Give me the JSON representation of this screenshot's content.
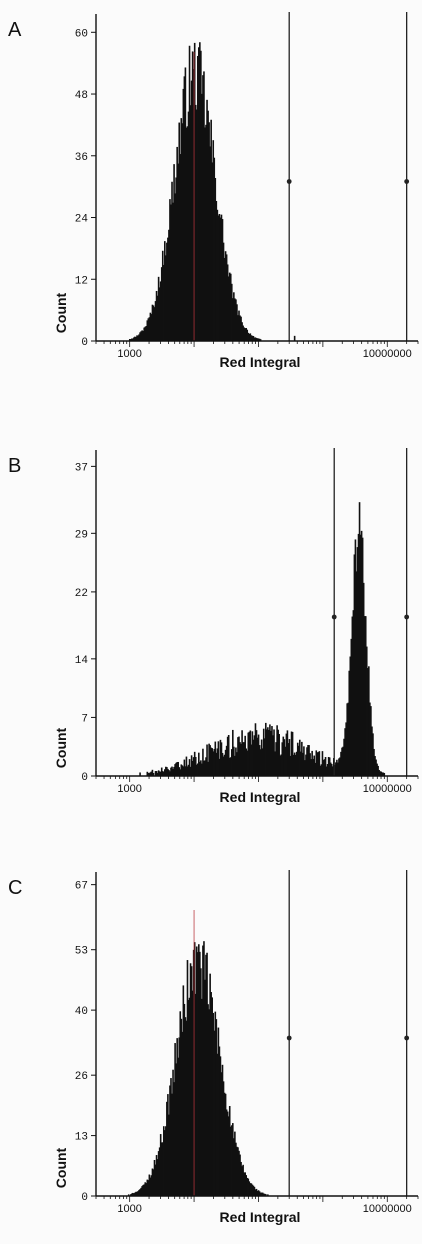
{
  "chart_data": [
    {
      "type": "histogram",
      "panel_label": "A",
      "xlabel": "Red Integral",
      "ylabel": "Count",
      "xscale": "log",
      "xlim": [
        300,
        30000000
      ],
      "x_tick_labels": [
        "1000",
        "10000000"
      ],
      "ylim": [
        0,
        62
      ],
      "y_tick_labels": [
        "60",
        "48",
        "36",
        "24",
        "12",
        "0"
      ],
      "y_ticks": [
        60,
        48,
        36,
        24,
        12,
        0
      ],
      "gates": [
        300000,
        20000000
      ],
      "peaks": [
        {
          "center": 4.0,
          "width": 0.32,
          "height": 52,
          "noise": 0.3
        }
      ],
      "tail_bins": [
        [
          5.55,
          1
        ]
      ],
      "redline": 10000
    },
    {
      "type": "histogram",
      "panel_label": "B",
      "xlabel": "Red Integral",
      "ylabel": "Count",
      "xscale": "log",
      "xlim": [
        300,
        30000000
      ],
      "x_tick_labels": [
        "1000",
        "10000000"
      ],
      "ylim": [
        0,
        38
      ],
      "y_tick_labels": [
        "37",
        "29",
        "22",
        "14",
        "7",
        "0"
      ],
      "y_ticks": [
        37,
        29,
        22,
        14,
        7,
        0
      ],
      "gates": [
        1500000,
        20000000
      ],
      "peaks": [
        {
          "center": 5.0,
          "width": 0.8,
          "height": 4.5,
          "noise": 0.9
        },
        {
          "center": 6.55,
          "width": 0.11,
          "height": 29,
          "noise": 0.25
        }
      ],
      "tail_bins": [],
      "redline": null
    },
    {
      "type": "histogram",
      "panel_label": "C",
      "xlabel": "Red Integral",
      "ylabel": "Count",
      "xscale": "log",
      "xlim": [
        300,
        30000000
      ],
      "x_tick_labels": [
        "1000",
        "10000000"
      ],
      "ylim": [
        0,
        68
      ],
      "y_tick_labels": [
        "67",
        "53",
        "40",
        "26",
        "13",
        "0"
      ],
      "y_ticks": [
        67,
        53,
        40,
        26,
        13,
        0
      ],
      "gates": [
        300000,
        20000000
      ],
      "peaks": [
        {
          "center": 4.05,
          "width": 0.34,
          "height": 50,
          "noise": 0.3
        }
      ],
      "tail_bins": [],
      "redline": 10000
    }
  ]
}
